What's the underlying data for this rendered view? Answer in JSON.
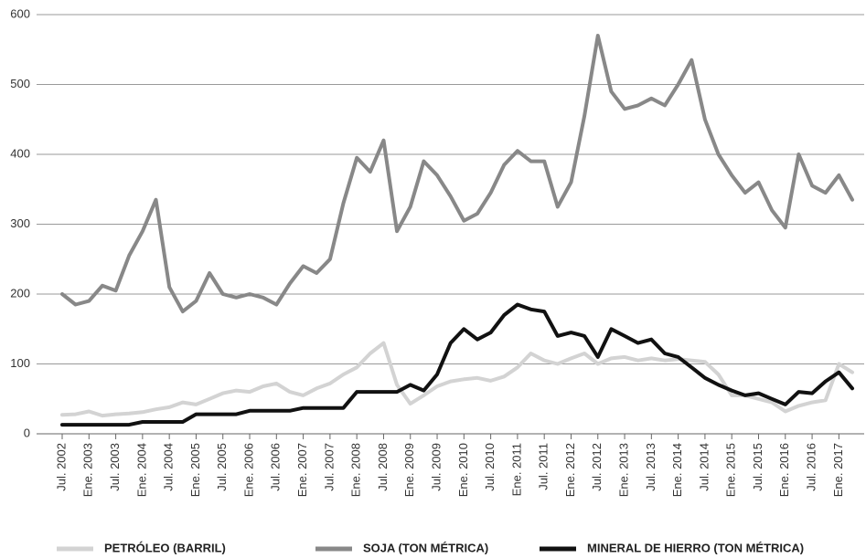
{
  "chart_data": {
    "type": "line",
    "categories": [
      "Jul. 2002",
      null,
      "Ene. 2003",
      null,
      "Jul. 2003",
      null,
      "Ene. 2004",
      null,
      "Jul. 2004",
      null,
      "Ene. 2005",
      null,
      "Jul. 2005",
      null,
      "Ene. 2006",
      null,
      "Jul. 2006",
      null,
      "Ene. 2007",
      null,
      "Jul. 2007",
      null,
      "Ene. 2008",
      null,
      "Jul. 2008",
      null,
      "Ene. 2009",
      null,
      "Jul. 2009",
      null,
      "Ene. 2010",
      null,
      "Jul. 2010",
      null,
      "Ene. 2011",
      null,
      "Jul. 2011",
      null,
      "Ene. 2012",
      null,
      "Jul. 2012",
      null,
      "Ene. 2013",
      null,
      "Jul. 2013",
      null,
      "Ene. 2014",
      null,
      "Jul. 2014",
      null,
      "Ene. 2015",
      null,
      "Jul. 2015",
      null,
      "Ene. 2016",
      null,
      "Jul. 2016",
      null,
      "Ene. 2017",
      null
    ],
    "series": [
      {
        "name": "PETRÓLEO (BARRIL)",
        "color": "#d3d3d3",
        "values": [
          27,
          28,
          32,
          26,
          28,
          29,
          31,
          35,
          38,
          45,
          42,
          50,
          58,
          62,
          60,
          68,
          72,
          60,
          55,
          65,
          72,
          85,
          95,
          115,
          130,
          70,
          43,
          55,
          68,
          75,
          78,
          80,
          76,
          82,
          95,
          115,
          105,
          100,
          108,
          115,
          100,
          108,
          110,
          105,
          108,
          105,
          107,
          105,
          103,
          85,
          55,
          55,
          50,
          45,
          32,
          40,
          45,
          48,
          100,
          88
        ]
      },
      {
        "name": "SOJA (TON MÉTRICA)",
        "color": "#888888",
        "values": [
          200,
          185,
          190,
          212,
          205,
          255,
          290,
          335,
          210,
          175,
          190,
          230,
          200,
          195,
          200,
          195,
          185,
          215,
          240,
          230,
          250,
          330,
          395,
          375,
          420,
          290,
          325,
          390,
          370,
          340,
          305,
          315,
          345,
          385,
          405,
          390,
          390,
          325,
          360,
          455,
          570,
          490,
          465,
          470,
          480,
          470,
          500,
          535,
          450,
          400,
          370,
          345,
          360,
          320,
          295,
          400,
          355,
          345,
          370,
          335
        ]
      },
      {
        "name": "MINERAL DE HIERRO (TON MÉTRICA)",
        "color": "#111111",
        "values": [
          13,
          13,
          13,
          13,
          13,
          13,
          17,
          17,
          17,
          17,
          28,
          28,
          28,
          28,
          33,
          33,
          33,
          33,
          37,
          37,
          37,
          37,
          60,
          60,
          60,
          60,
          70,
          62,
          85,
          130,
          150,
          135,
          145,
          170,
          185,
          178,
          175,
          140,
          145,
          140,
          110,
          150,
          140,
          130,
          135,
          115,
          110,
          95,
          80,
          70,
          62,
          55,
          58,
          50,
          42,
          60,
          58,
          75,
          88,
          65
        ]
      }
    ],
    "ylim": [
      0,
      600
    ],
    "yticks": [
      0,
      100,
      200,
      300,
      400,
      500,
      600
    ],
    "grid": true,
    "legend": "bottom"
  }
}
